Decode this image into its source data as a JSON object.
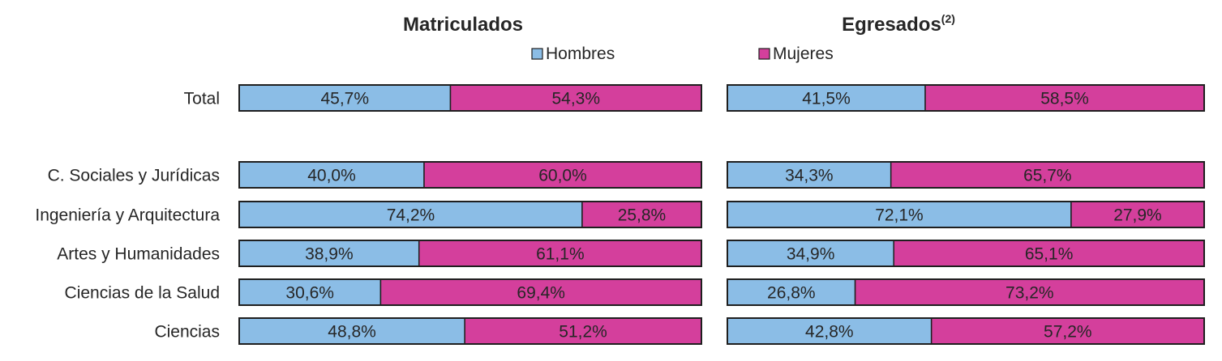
{
  "chart_data": {
    "type": "bar",
    "orientation": "horizontal-stacked-100",
    "legend": {
      "placement": "top-center",
      "entries": [
        {
          "name": "Hombres",
          "color": "#8bbde6"
        },
        {
          "name": "Mujeres",
          "color": "#d43f9c"
        }
      ]
    },
    "categories": [
      "Total",
      "C. Sociales y Jurídicas",
      "Ingeniería y Arquitectura",
      "Artes y Humanidades",
      "Ciencias de la Salud",
      "Ciencias"
    ],
    "panels": [
      {
        "title": "Matriculados",
        "title_sup": "",
        "series": [
          {
            "name": "Hombres",
            "values": [
              45.7,
              40.0,
              74.2,
              38.9,
              30.6,
              48.8
            ],
            "labels": [
              "45,7%",
              "40,0%",
              "74,2%",
              "38,9%",
              "30,6%",
              "48,8%"
            ]
          },
          {
            "name": "Mujeres",
            "values": [
              54.3,
              60.0,
              25.8,
              61.1,
              69.4,
              51.2
            ],
            "labels": [
              "54,3%",
              "60,0%",
              "25,8%",
              "61,1%",
              "69,4%",
              "51,2%"
            ]
          }
        ],
        "xlim": [
          0,
          100
        ]
      },
      {
        "title": "Egresados",
        "title_sup": "(2)",
        "series": [
          {
            "name": "Hombres",
            "values": [
              41.5,
              34.3,
              72.1,
              34.9,
              26.8,
              42.8
            ],
            "labels": [
              "41,5%",
              "34,3%",
              "72,1%",
              "34,9%",
              "26,8%",
              "42,8%"
            ]
          },
          {
            "name": "Mujeres",
            "values": [
              58.5,
              65.7,
              27.9,
              65.1,
              73.2,
              57.2
            ],
            "labels": [
              "58,5%",
              "65,7%",
              "27,9%",
              "65,1%",
              "73,2%",
              "57,2%"
            ]
          }
        ],
        "xlim": [
          0,
          100
        ]
      }
    ]
  }
}
